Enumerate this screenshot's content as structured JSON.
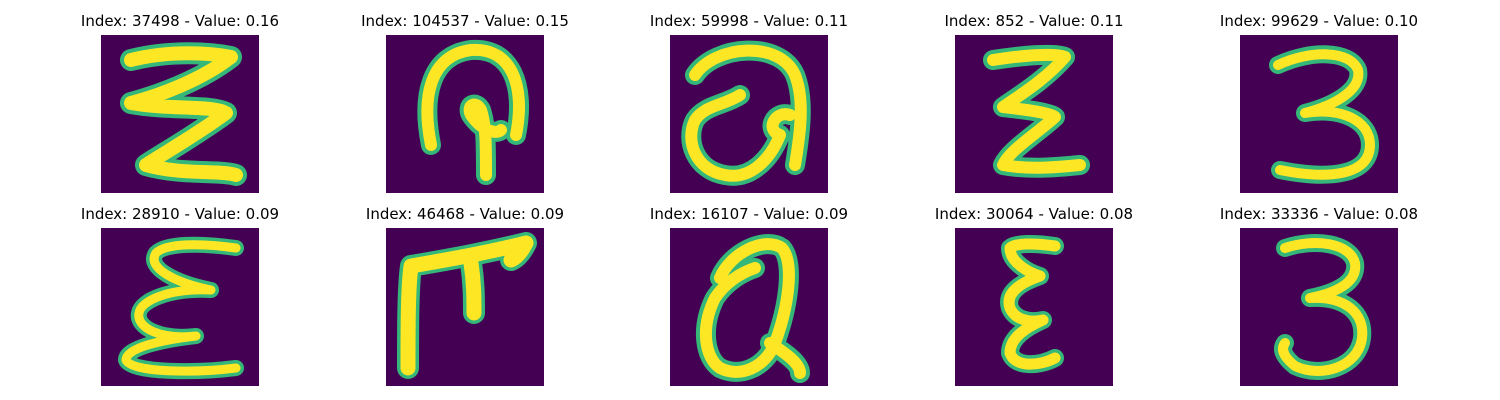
{
  "figure": {
    "tiles": [
      {
        "title": "Index: 37498 - Value: 0.16",
        "glyph": "triple-zigzag"
      },
      {
        "title": "Index: 104537 - Value: 0.15",
        "glyph": "loop-with-stem"
      },
      {
        "title": "Index: 59998 - Value: 0.11",
        "glyph": "rounded-a"
      },
      {
        "title": "Index: 852 - Value: 0.11",
        "glyph": "double-zigzag"
      },
      {
        "title": "Index: 99629 - Value: 0.10",
        "glyph": "digit-three"
      },
      {
        "title": "Index: 28910 - Value: 0.09",
        "glyph": "reversed-epsilon"
      },
      {
        "title": "Index: 46468 - Value: 0.09",
        "glyph": "hook-f"
      },
      {
        "title": "Index: 16107 - Value: 0.09",
        "glyph": "tall-a"
      },
      {
        "title": "Index: 30064 - Value: 0.08",
        "glyph": "narrow-epsilon"
      },
      {
        "title": "Index: 33336 - Value: 0.08",
        "glyph": "digit-three"
      }
    ]
  },
  "colors": {
    "background": "#440154",
    "stroke": "#fde725",
    "edge": "#35b779",
    "title": "#000000"
  }
}
